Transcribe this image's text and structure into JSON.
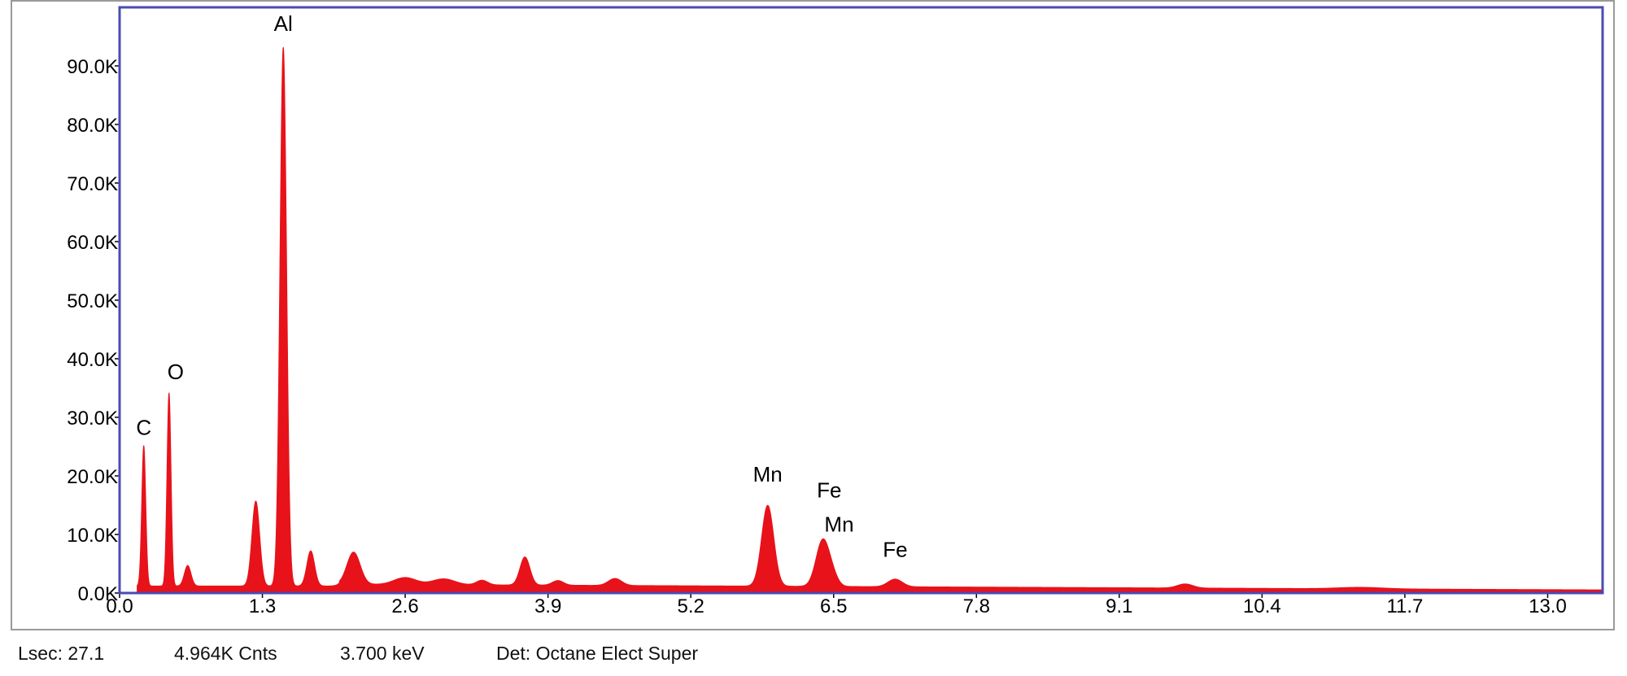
{
  "chart_data": {
    "type": "area",
    "title": "",
    "xlabel": "",
    "ylabel": "",
    "xlim": [
      0,
      13.5
    ],
    "ylim": [
      0,
      100000
    ],
    "x_ticks": [
      "0.0",
      "1.3",
      "2.6",
      "3.9",
      "5.2",
      "6.5",
      "7.8",
      "9.1",
      "10.4",
      "11.7",
      "13.0"
    ],
    "x_tick_values": [
      0,
      1.3,
      2.6,
      3.9,
      5.2,
      6.5,
      7.8,
      9.1,
      10.4,
      11.7,
      13.0
    ],
    "y_ticks": [
      "0.0K",
      "10.0K",
      "20.0K",
      "30.0K",
      "40.0K",
      "50.0K",
      "60.0K",
      "70.0K",
      "80.0K",
      "90.0K"
    ],
    "y_tick_values": [
      0,
      10000,
      20000,
      30000,
      40000,
      50000,
      60000,
      70000,
      80000,
      90000
    ],
    "grid": false,
    "series_color": "#e8121a",
    "frame_color": "#4b4bb0",
    "background": 1200,
    "peaks": [
      {
        "x": 0.22,
        "y": 24000,
        "w": 0.018
      },
      {
        "x": 0.45,
        "y": 33000,
        "w": 0.018
      },
      {
        "x": 0.62,
        "y": 3500,
        "w": 0.03
      },
      {
        "x": 1.24,
        "y": 14500,
        "w": 0.035
      },
      {
        "x": 1.49,
        "y": 92000,
        "w": 0.03
      },
      {
        "x": 1.74,
        "y": 6000,
        "w": 0.035
      },
      {
        "x": 2.13,
        "y": 5500,
        "w": 0.06
      },
      {
        "x": 2.6,
        "y": 1200,
        "w": 0.1
      },
      {
        "x": 2.95,
        "y": 1000,
        "w": 0.1
      },
      {
        "x": 3.3,
        "y": 800,
        "w": 0.05
      },
      {
        "x": 3.69,
        "y": 4800,
        "w": 0.045
      },
      {
        "x": 3.99,
        "y": 800,
        "w": 0.05
      },
      {
        "x": 4.51,
        "y": 1200,
        "w": 0.06
      },
      {
        "x": 5.9,
        "y": 13800,
        "w": 0.055
      },
      {
        "x": 6.4,
        "y": 7800,
        "w": 0.06
      },
      {
        "x": 6.49,
        "y": 1500,
        "w": 0.05
      },
      {
        "x": 7.06,
        "y": 1300,
        "w": 0.065
      },
      {
        "x": 9.7,
        "y": 700,
        "w": 0.07
      },
      {
        "x": 11.3,
        "y": 250,
        "w": 0.2
      }
    ],
    "peak_labels": [
      {
        "text": "C",
        "x": 0.22,
        "y": 27000
      },
      {
        "text": "O",
        "x": 0.51,
        "y": 36500
      },
      {
        "text": "Al",
        "x": 1.49,
        "y": 96000
      },
      {
        "text": "Mn",
        "x": 5.9,
        "y": 19000
      },
      {
        "text": "Fe",
        "x": 6.46,
        "y": 16300
      },
      {
        "text": "Mn",
        "x": 6.55,
        "y": 10500
      },
      {
        "text": "Fe",
        "x": 7.06,
        "y": 6200
      }
    ]
  },
  "status": {
    "lsec": "Lsec: 27.1",
    "counts": "4.964K Cnts",
    "energy": "3.700 keV",
    "detector": "Det: Octane Elect Super"
  }
}
